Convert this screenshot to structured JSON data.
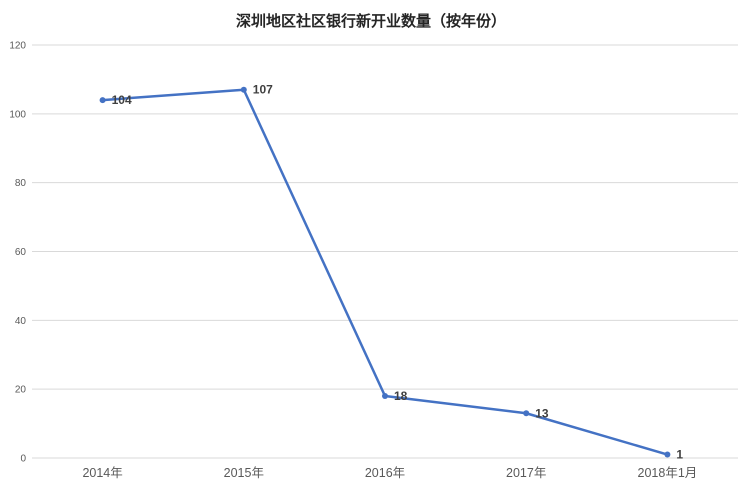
{
  "chart_data": {
    "type": "line",
    "title": "深圳地区社区银行新开业数量（按年份）",
    "categories": [
      "2014年",
      "2015年",
      "2016年",
      "2017年",
      "2018年1月"
    ],
    "values": [
      104,
      107,
      18,
      13,
      1
    ],
    "series_name": "",
    "xlabel": "",
    "ylabel": "",
    "ylim": [
      0,
      120
    ],
    "yticks": [
      0,
      20,
      40,
      60,
      80,
      100,
      120
    ],
    "grid": true,
    "legend_position": "none",
    "data_labels_shown": true,
    "colors": {
      "line": "#4472C4",
      "gridline": "#d9d9d9",
      "axis_text": "#595959",
      "title_text": "#262626",
      "data_label_text": "#404040",
      "background": "#ffffff"
    }
  }
}
